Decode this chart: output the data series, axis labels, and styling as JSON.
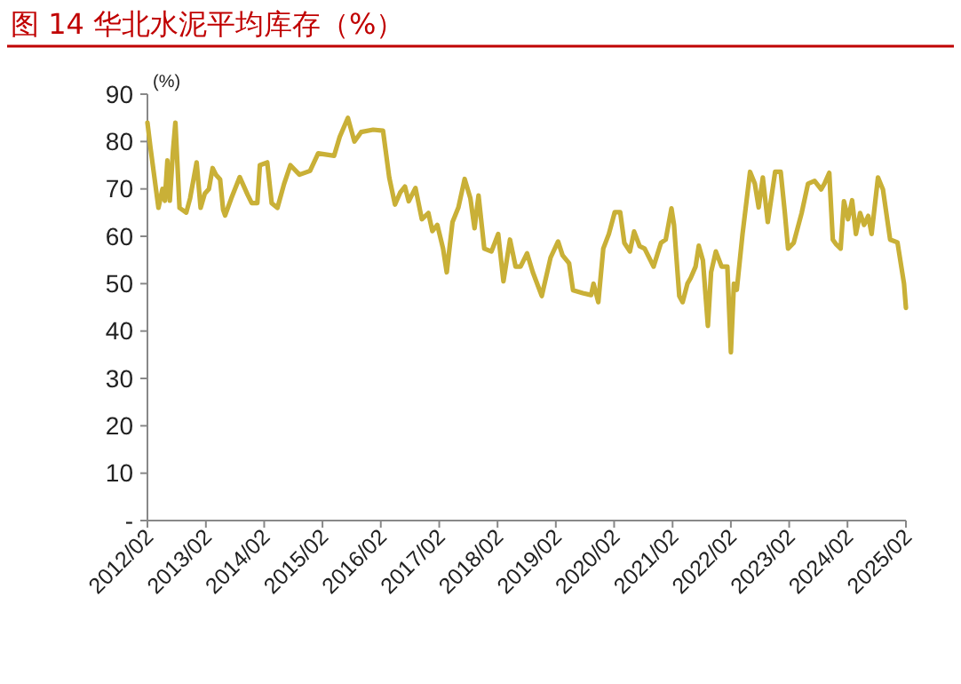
{
  "chart_data": {
    "type": "line",
    "title": "图 14 华北水泥平均库存（%）",
    "ylabel": "(%)",
    "x": [
      "2012-02-01",
      "2012-02-20",
      "2012-04-10",
      "2012-05-05",
      "2012-05-20",
      "2012-06-05",
      "2012-06-20",
      "2012-07-10",
      "2012-07-25",
      "2012-08-20",
      "2012-10-01",
      "2012-10-25",
      "2012-12-05",
      "2012-12-30",
      "2013-01-25",
      "2013-02-20",
      "2013-03-15",
      "2013-04-05",
      "2013-05-01",
      "2013-05-20",
      "2013-06-01",
      "2013-07-10",
      "2013-09-01",
      "2013-10-20",
      "2013-11-15",
      "2013-12-20",
      "2014-01-05",
      "2014-02-20",
      "2014-03-20",
      "2014-04-25",
      "2014-06-05",
      "2014-07-15",
      "2014-09-10",
      "2014-11-15",
      "2015-01-05",
      "2015-04-15",
      "2015-05-20",
      "2015-07-10",
      "2015-08-20",
      "2015-10-01",
      "2015-12-15",
      "2016-02-15",
      "2016-03-25",
      "2016-04-30",
      "2016-06-01",
      "2016-07-01",
      "2016-07-25",
      "2016-09-05",
      "2016-10-15",
      "2016-11-25",
      "2016-12-20",
      "2017-01-20",
      "2017-02-25",
      "2017-03-20",
      "2017-04-25",
      "2017-06-01",
      "2017-07-10",
      "2017-08-15",
      "2017-09-10",
      "2017-10-05",
      "2017-11-10",
      "2017-12-25",
      "2018-02-05",
      "2018-03-10",
      "2018-04-20",
      "2018-05-25",
      "2018-06-25",
      "2018-08-05",
      "2018-09-10",
      "2018-11-05",
      "2018-12-30",
      "2019-02-15",
      "2019-03-15",
      "2019-04-25",
      "2019-05-20",
      "2019-07-20",
      "2019-09-10",
      "2019-09-25",
      "2019-10-25",
      "2019-11-25",
      "2019-12-30",
      "2020-02-05",
      "2020-03-10",
      "2020-04-05",
      "2020-05-10",
      "2020-06-05",
      "2020-07-10",
      "2020-08-10",
      "2020-10-05",
      "2020-11-20",
      "2020-12-20",
      "2021-01-25",
      "2021-02-10",
      "2021-03-15",
      "2021-04-05",
      "2021-05-05",
      "2021-05-25",
      "2021-06-25",
      "2021-07-15",
      "2021-08-10",
      "2021-09-10",
      "2021-09-30",
      "2021-10-30",
      "2021-12-05",
      "2022-01-10",
      "2022-02-01",
      "2022-02-20",
      "2022-03-10",
      "2022-04-15",
      "2022-06-01",
      "2022-07-01",
      "2022-07-25",
      "2022-08-20",
      "2022-09-20",
      "2022-11-05",
      "2022-12-10",
      "2023-01-05",
      "2023-01-25",
      "2023-03-01",
      "2023-04-20",
      "2023-05-30",
      "2023-07-10",
      "2023-08-20",
      "2023-09-10",
      "2023-10-10",
      "2023-11-01",
      "2023-11-20",
      "2023-12-20",
      "2024-01-10",
      "2024-02-05",
      "2024-03-01",
      "2024-03-25",
      "2024-04-20",
      "2024-05-15",
      "2024-06-10",
      "2024-07-01",
      "2024-08-10",
      "2024-09-10",
      "2024-10-25",
      "2024-12-10",
      "2025-01-20",
      "2025-02-01"
    ],
    "series": [
      {
        "color": "#c9b037",
        "values": [
          84,
          78.7,
          66,
          70,
          67.5,
          76,
          67.5,
          78,
          84,
          66,
          65,
          68,
          75.6,
          66,
          69,
          70,
          74.4,
          73,
          72,
          65.6,
          64.4,
          68,
          72.5,
          68.8,
          67,
          67,
          75,
          75.6,
          67,
          66,
          71,
          75,
          73,
          73.8,
          77.5,
          77,
          81,
          85,
          80,
          82,
          82.5,
          82.3,
          72.4,
          66.7,
          69.2,
          70.5,
          67.4,
          70.2,
          63.6,
          64.9,
          61.1,
          62.4,
          57.4,
          52.4,
          63,
          66.1,
          72.1,
          68,
          61.7,
          68.6,
          57.4,
          56.8,
          60.5,
          50.5,
          59.3,
          53.6,
          53.6,
          56.4,
          52.4,
          47.4,
          55.5,
          58.9,
          56,
          54.3,
          48.6,
          48,
          47.6,
          50,
          46.1,
          57.4,
          60.5,
          65.1,
          65.1,
          58.6,
          56.8,
          61,
          57.9,
          57.4,
          53.6,
          58.6,
          59.3,
          65.9,
          62.4,
          47.4,
          46.1,
          50,
          51.2,
          53.6,
          58,
          54.9,
          41.1,
          52.4,
          56.8,
          53.6,
          53.6,
          35.5,
          50,
          48.7,
          60.5,
          73.6,
          71.1,
          66.1,
          72.4,
          63,
          73.6,
          73.6,
          64.9,
          57.4,
          58.6,
          64.9,
          71.1,
          71.7,
          69.9,
          71.1,
          73.4,
          59.3,
          58.4,
          57.4,
          67.4,
          63.6,
          67.6,
          60.5,
          64.9,
          62.4,
          64.3,
          60.5,
          72.4,
          69.9,
          59.3,
          58.7,
          50,
          44.9
        ]
      }
    ],
    "xlim": [
      "2012-02",
      "2025-02"
    ],
    "xticks": [
      {
        "value": "2012-02",
        "label": "2012/02"
      },
      {
        "value": "2013-02",
        "label": "2013/02"
      },
      {
        "value": "2014-02",
        "label": "2014/02"
      },
      {
        "value": "2015-02",
        "label": "2015/02"
      },
      {
        "value": "2016-02",
        "label": "2016/02"
      },
      {
        "value": "2017-02",
        "label": "2017/02"
      },
      {
        "value": "2018-02",
        "label": "2018/02"
      },
      {
        "value": "2019-02",
        "label": "2019/02"
      },
      {
        "value": "2020-02",
        "label": "2020/02"
      },
      {
        "value": "2021-02",
        "label": "2021/02"
      },
      {
        "value": "2022-02",
        "label": "2022/02"
      },
      {
        "value": "2023-02",
        "label": "2023/02"
      },
      {
        "value": "2024-02",
        "label": "2024/02"
      },
      {
        "value": "2025-02",
        "label": "2025/02"
      }
    ],
    "ylim": [
      0,
      90
    ],
    "yticks": [
      {
        "value": 0,
        "label": "-"
      },
      10,
      20,
      30,
      40,
      50,
      60,
      70,
      80,
      90
    ],
    "grid": false,
    "marker": "none",
    "line_style": "solid"
  }
}
